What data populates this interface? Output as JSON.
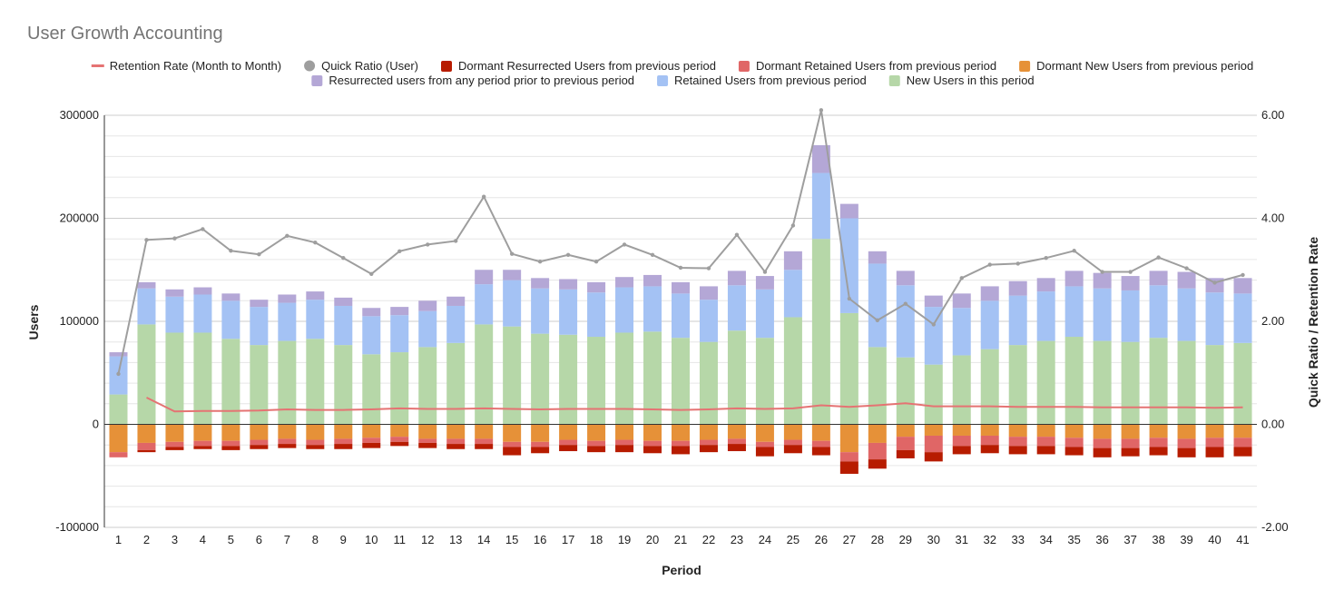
{
  "chart_data": {
    "type": "bar",
    "title": "User Growth Accounting",
    "xlabel": "Period",
    "ylabel": "Users",
    "y2label": "Quick Ratio / Retention Rate",
    "ylim": [
      -100000,
      300000
    ],
    "y2lim": [
      -2,
      6
    ],
    "yticks": [
      "300000",
      "200000",
      "100000",
      "0",
      "-100000"
    ],
    "y2ticks": [
      "6.00",
      "4.00",
      "2.00",
      "0.00",
      "-2.00"
    ],
    "grid": true,
    "legend_position": "top",
    "categories": [
      "1",
      "2",
      "3",
      "4",
      "5",
      "6",
      "7",
      "8",
      "9",
      "10",
      "11",
      "12",
      "13",
      "14",
      "15",
      "16",
      "17",
      "18",
      "19",
      "20",
      "21",
      "22",
      "23",
      "24",
      "25",
      "26",
      "27",
      "28",
      "29",
      "30",
      "31",
      "32",
      "33",
      "34",
      "35",
      "36",
      "37",
      "38",
      "39",
      "40",
      "41"
    ],
    "legend": [
      {
        "name": "Retention Rate (Month to Month)",
        "marker": "line",
        "color": "#e57373"
      },
      {
        "name": "Quick Ratio (User)",
        "marker": "circle",
        "color": "#9e9e9e"
      },
      {
        "name": "Dormant Resurrected Users from previous period",
        "marker": "square",
        "color": "#b71c00"
      },
      {
        "name": "Dormant Retained Users from previous period",
        "marker": "square",
        "color": "#e06666"
      },
      {
        "name": "Dormant New Users from previous period",
        "marker": "square",
        "color": "#e69138"
      },
      {
        "name": "Resurrected users from any period prior to previous period",
        "marker": "square",
        "color": "#b4a7d6"
      },
      {
        "name": "Retained Users from previous period",
        "marker": "square",
        "color": "#a4c2f4"
      },
      {
        "name": "New Users in this period",
        "marker": "square",
        "color": "#b6d7a8"
      }
    ],
    "positive_series": [
      {
        "name": "New Users in this period",
        "color": "#b6d7a8",
        "values": [
          29000,
          97000,
          89000,
          89000,
          83000,
          77000,
          81000,
          83000,
          77000,
          68000,
          70000,
          75000,
          79000,
          97000,
          95000,
          88000,
          87000,
          85000,
          89000,
          90000,
          84000,
          80000,
          91000,
          84000,
          104000,
          180000,
          108000,
          75000,
          65000,
          58000,
          67000,
          73000,
          77000,
          81000,
          85000,
          81000,
          80000,
          84000,
          81000,
          77000,
          79000
        ]
      },
      {
        "name": "Retained Users from previous period",
        "color": "#a4c2f4",
        "values": [
          37000,
          35000,
          35000,
          37000,
          37000,
          37000,
          37000,
          38000,
          38000,
          37000,
          36000,
          35000,
          36000,
          39000,
          45000,
          44000,
          44000,
          43000,
          44000,
          44000,
          43000,
          41000,
          44000,
          47000,
          46000,
          64000,
          92000,
          81000,
          70000,
          56000,
          46000,
          47000,
          48000,
          48000,
          49000,
          51000,
          50000,
          51000,
          51000,
          51000,
          48000
        ]
      },
      {
        "name": "Resurrected users from any period prior to previous period",
        "color": "#b4a7d6",
        "values": [
          4000,
          6000,
          7000,
          7000,
          7000,
          7000,
          8000,
          8000,
          8000,
          8000,
          8000,
          10000,
          9000,
          14000,
          10000,
          10000,
          10000,
          10000,
          10000,
          11000,
          11000,
          13000,
          14000,
          13000,
          18000,
          27000,
          14000,
          12000,
          14000,
          11000,
          14000,
          14000,
          14000,
          13000,
          15000,
          15000,
          14000,
          14000,
          16000,
          14000,
          15000
        ]
      }
    ],
    "negative_series": [
      {
        "name": "Dormant New Users from previous period",
        "color": "#e69138",
        "values": [
          -27000,
          -18000,
          -17000,
          -16000,
          -16000,
          -15000,
          -14000,
          -15000,
          -14000,
          -13000,
          -12000,
          -14000,
          -14000,
          -14000,
          -17000,
          -17000,
          -15000,
          -16000,
          -15000,
          -16000,
          -16000,
          -15000,
          -14000,
          -17000,
          -15000,
          -16000,
          -27000,
          -18000,
          -12000,
          -11000,
          -11000,
          -11000,
          -12000,
          -12000,
          -13000,
          -14000,
          -14000,
          -13000,
          -14000,
          -13000,
          -13000
        ]
      },
      {
        "name": "Dormant Retained Users from previous period",
        "color": "#e06666",
        "values": [
          -5000,
          -7000,
          -5000,
          -5000,
          -5000,
          -5000,
          -5000,
          -5000,
          -5000,
          -5000,
          -5000,
          -4000,
          -5000,
          -5000,
          -5000,
          -5000,
          -5000,
          -5000,
          -5000,
          -5000,
          -5000,
          -5000,
          -5000,
          -5000,
          -5000,
          -6000,
          -9000,
          -16000,
          -13000,
          -16000,
          -10000,
          -9000,
          -9000,
          -9000,
          -9000,
          -9000,
          -9000,
          -9000,
          -9000,
          -9000,
          -9000
        ]
      },
      {
        "name": "Dormant Resurrected Users from previous period",
        "color": "#b71c00",
        "values": [
          0,
          -2000,
          -3000,
          -3000,
          -4000,
          -4000,
          -4000,
          -4000,
          -5000,
          -5000,
          -4000,
          -5000,
          -5000,
          -5000,
          -8000,
          -6000,
          -6000,
          -6000,
          -7000,
          -7000,
          -8000,
          -7000,
          -7000,
          -9000,
          -8000,
          -8000,
          -12000,
          -9000,
          -8000,
          -9000,
          -8000,
          -8000,
          -8000,
          -8000,
          -8000,
          -9000,
          -8000,
          -8000,
          -9000,
          -10000,
          -9000
        ]
      }
    ],
    "line_series": [
      {
        "name": "Quick Ratio (User)",
        "color": "#9e9e9e",
        "axis": "right",
        "values": [
          0.98,
          3.58,
          3.61,
          3.79,
          3.37,
          3.3,
          3.66,
          3.53,
          3.23,
          2.92,
          3.36,
          3.49,
          3.56,
          4.42,
          3.31,
          3.16,
          3.29,
          3.16,
          3.49,
          3.29,
          3.04,
          3.03,
          3.68,
          2.96,
          3.86,
          6.1,
          2.44,
          2.02,
          2.34,
          1.94,
          2.84,
          3.1,
          3.12,
          3.23,
          3.37,
          2.96,
          2.96,
          3.24,
          3.03,
          2.75,
          2.9
        ]
      },
      {
        "name": "Retention Rate (Month to Month)",
        "color": "#e57373",
        "axis": "right",
        "values": [
          null,
          0.52,
          0.25,
          0.26,
          0.26,
          0.27,
          0.29,
          0.28,
          0.28,
          0.29,
          0.31,
          0.3,
          0.3,
          0.31,
          0.3,
          0.29,
          0.3,
          0.3,
          0.3,
          0.29,
          0.28,
          0.29,
          0.31,
          0.3,
          0.31,
          0.37,
          0.34,
          0.37,
          0.41,
          0.35,
          0.35,
          0.35,
          0.34,
          0.34,
          0.34,
          0.33,
          0.33,
          0.33,
          0.33,
          0.32,
          0.33
        ]
      }
    ]
  }
}
